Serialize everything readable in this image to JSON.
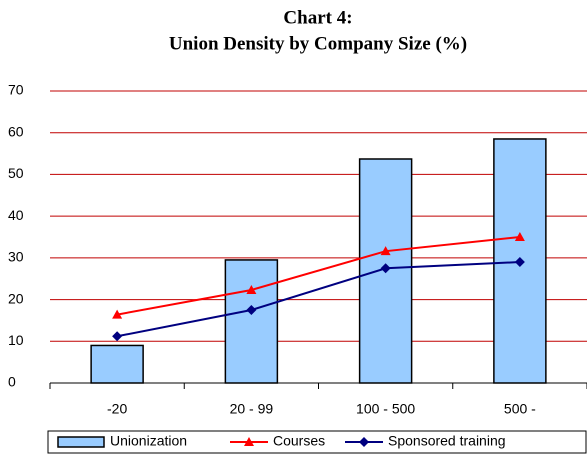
{
  "chart_data": {
    "type": "bar",
    "title_lines": [
      "Chart 4:",
      "Union Density by Company Size (%)"
    ],
    "categories": [
      "-20",
      "20 - 99",
      "100 - 500",
      "500 -"
    ],
    "series": [
      {
        "name": "Unionization",
        "type": "bar",
        "color": "#99ccff",
        "values": [
          9,
          29.5,
          53.7,
          58.5
        ]
      },
      {
        "name": "Courses",
        "type": "line",
        "marker": "triangle",
        "color": "#ff0000",
        "values": [
          16.4,
          22.3,
          31.6,
          35
        ]
      },
      {
        "name": "Sponsored training",
        "type": "line",
        "marker": "diamond",
        "color": "#000080",
        "values": [
          11.2,
          17.5,
          27.5,
          29
        ]
      }
    ],
    "ylim": [
      0,
      70
    ],
    "yticks": [
      0,
      10,
      20,
      30,
      40,
      50,
      60,
      70
    ],
    "grid": true,
    "legend": "bottom"
  }
}
